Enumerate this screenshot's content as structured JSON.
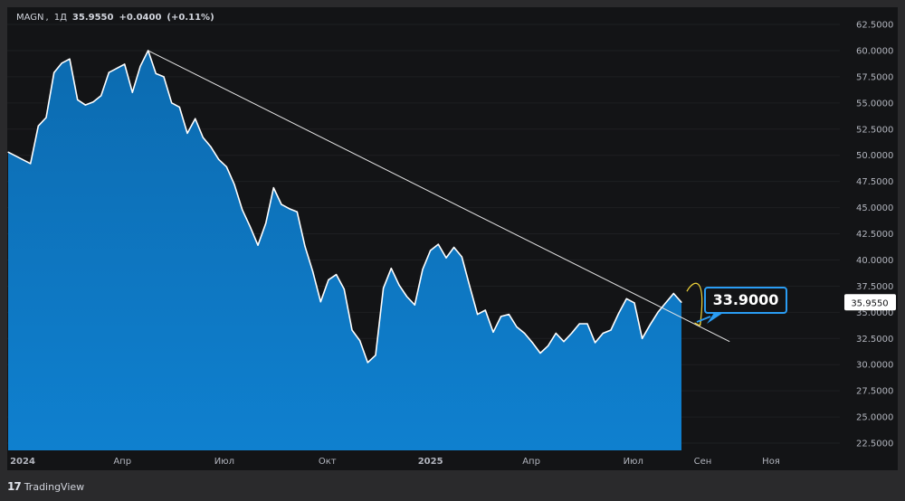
{
  "header": {
    "symbol": "MAGN",
    "interval": "1Д",
    "price": "35.9550",
    "change": "+0.0400",
    "change_pct": "(+0.11%)"
  },
  "brand": {
    "name": "TradingView",
    "icon": "tradingview-logo-icon"
  },
  "colors": {
    "background": "#131416",
    "area_top": "#0c6bb0",
    "area_bottom": "#0f80cf",
    "line": "#ffffff",
    "trendline": "#e6e6e6",
    "arrow": "#f0d43a",
    "target_border": "#2a9df4",
    "grid": "#1e1f22",
    "axis_text": "#b2b5be"
  },
  "chart_data": {
    "type": "area",
    "ylim": [
      22.5,
      62.5
    ],
    "y_ticks": [
      "62.5000",
      "60.0000",
      "57.5000",
      "55.0000",
      "52.5000",
      "50.0000",
      "47.5000",
      "45.0000",
      "42.5000",
      "40.0000",
      "37.5000",
      "35.0000",
      "32.5000",
      "30.0000",
      "27.5000",
      "25.0000",
      "22.5000"
    ],
    "x_ticks": [
      "2024",
      "Апр",
      "Июл",
      "Окт",
      "2025",
      "Апр",
      "Июл",
      "Сен",
      "Ноя"
    ],
    "current_price_label": "35.9550",
    "target_label": "33.9000",
    "x": [
      "2024-01-03",
      "2024-01-10",
      "2024-01-17",
      "2024-01-24",
      "2024-01-31",
      "2024-02-07",
      "2024-02-14",
      "2024-02-21",
      "2024-02-28",
      "2024-03-06",
      "2024-03-13",
      "2024-03-20",
      "2024-03-27",
      "2024-04-03",
      "2024-04-10",
      "2024-04-17",
      "2024-04-24",
      "2024-05-01",
      "2024-05-08",
      "2024-05-15",
      "2024-05-22",
      "2024-05-29",
      "2024-06-05",
      "2024-06-12",
      "2024-06-19",
      "2024-06-26",
      "2024-07-03",
      "2024-07-10",
      "2024-07-17",
      "2024-07-24",
      "2024-07-31",
      "2024-08-07",
      "2024-08-14",
      "2024-08-21",
      "2024-08-28",
      "2024-09-04",
      "2024-09-11",
      "2024-09-18",
      "2024-09-25",
      "2024-10-02",
      "2024-10-09",
      "2024-10-16",
      "2024-10-23",
      "2024-10-30",
      "2024-11-06",
      "2024-11-13",
      "2024-11-20",
      "2024-11-27",
      "2024-12-04",
      "2024-12-11",
      "2024-12-18",
      "2024-12-25",
      "2025-01-01",
      "2025-01-08",
      "2025-01-15",
      "2025-01-22",
      "2025-01-29",
      "2025-02-05",
      "2025-02-12",
      "2025-02-19",
      "2025-02-26",
      "2025-03-05",
      "2025-03-12",
      "2025-03-19",
      "2025-03-26",
      "2025-04-02",
      "2025-04-09",
      "2025-04-16",
      "2025-04-23",
      "2025-04-30",
      "2025-05-07",
      "2025-05-14",
      "2025-05-21",
      "2025-05-28",
      "2025-06-04",
      "2025-06-11",
      "2025-06-18",
      "2025-06-25",
      "2025-07-02",
      "2025-07-09",
      "2025-07-16",
      "2025-07-23",
      "2025-07-30",
      "2025-08-06",
      "2025-08-13"
    ],
    "values": [
      50.3,
      49.2,
      52.8,
      53.6,
      57.9,
      58.8,
      59.2,
      55.3,
      54.8,
      55.1,
      55.7,
      57.9,
      58.3,
      58.7,
      56.0,
      58.5,
      60.0,
      57.8,
      57.5,
      55.0,
      54.6,
      52.1,
      53.5,
      51.7,
      50.8,
      49.6,
      48.9,
      47.2,
      44.8,
      43.2,
      41.4,
      43.5,
      46.9,
      45.3,
      44.9,
      44.6,
      41.3,
      38.9,
      36.0,
      38.1,
      38.6,
      37.2,
      33.3,
      32.3,
      30.2,
      30.9,
      37.3,
      39.2,
      37.6,
      36.5,
      35.7,
      39.1,
      40.9,
      41.5,
      40.2,
      41.2,
      40.3,
      37.5,
      34.8,
      35.2,
      33.1,
      34.6,
      34.8,
      33.6,
      33.0,
      32.1,
      31.1,
      31.8,
      33.0,
      32.2,
      33.0,
      33.9,
      33.9,
      32.1,
      33.0,
      33.3,
      34.9,
      36.3,
      35.9,
      32.5,
      33.8,
      35.0,
      35.9,
      36.8,
      35.955
    ],
    "trendline": {
      "start": [
        "2024-04-24",
        60.0
      ],
      "end": [
        "2025-09-25",
        32.2
      ]
    },
    "forecast_arrow": {
      "from": [
        "2025-08-13",
        37.0
      ],
      "to": [
        "2025-08-28",
        33.9
      ]
    },
    "grid": true
  }
}
